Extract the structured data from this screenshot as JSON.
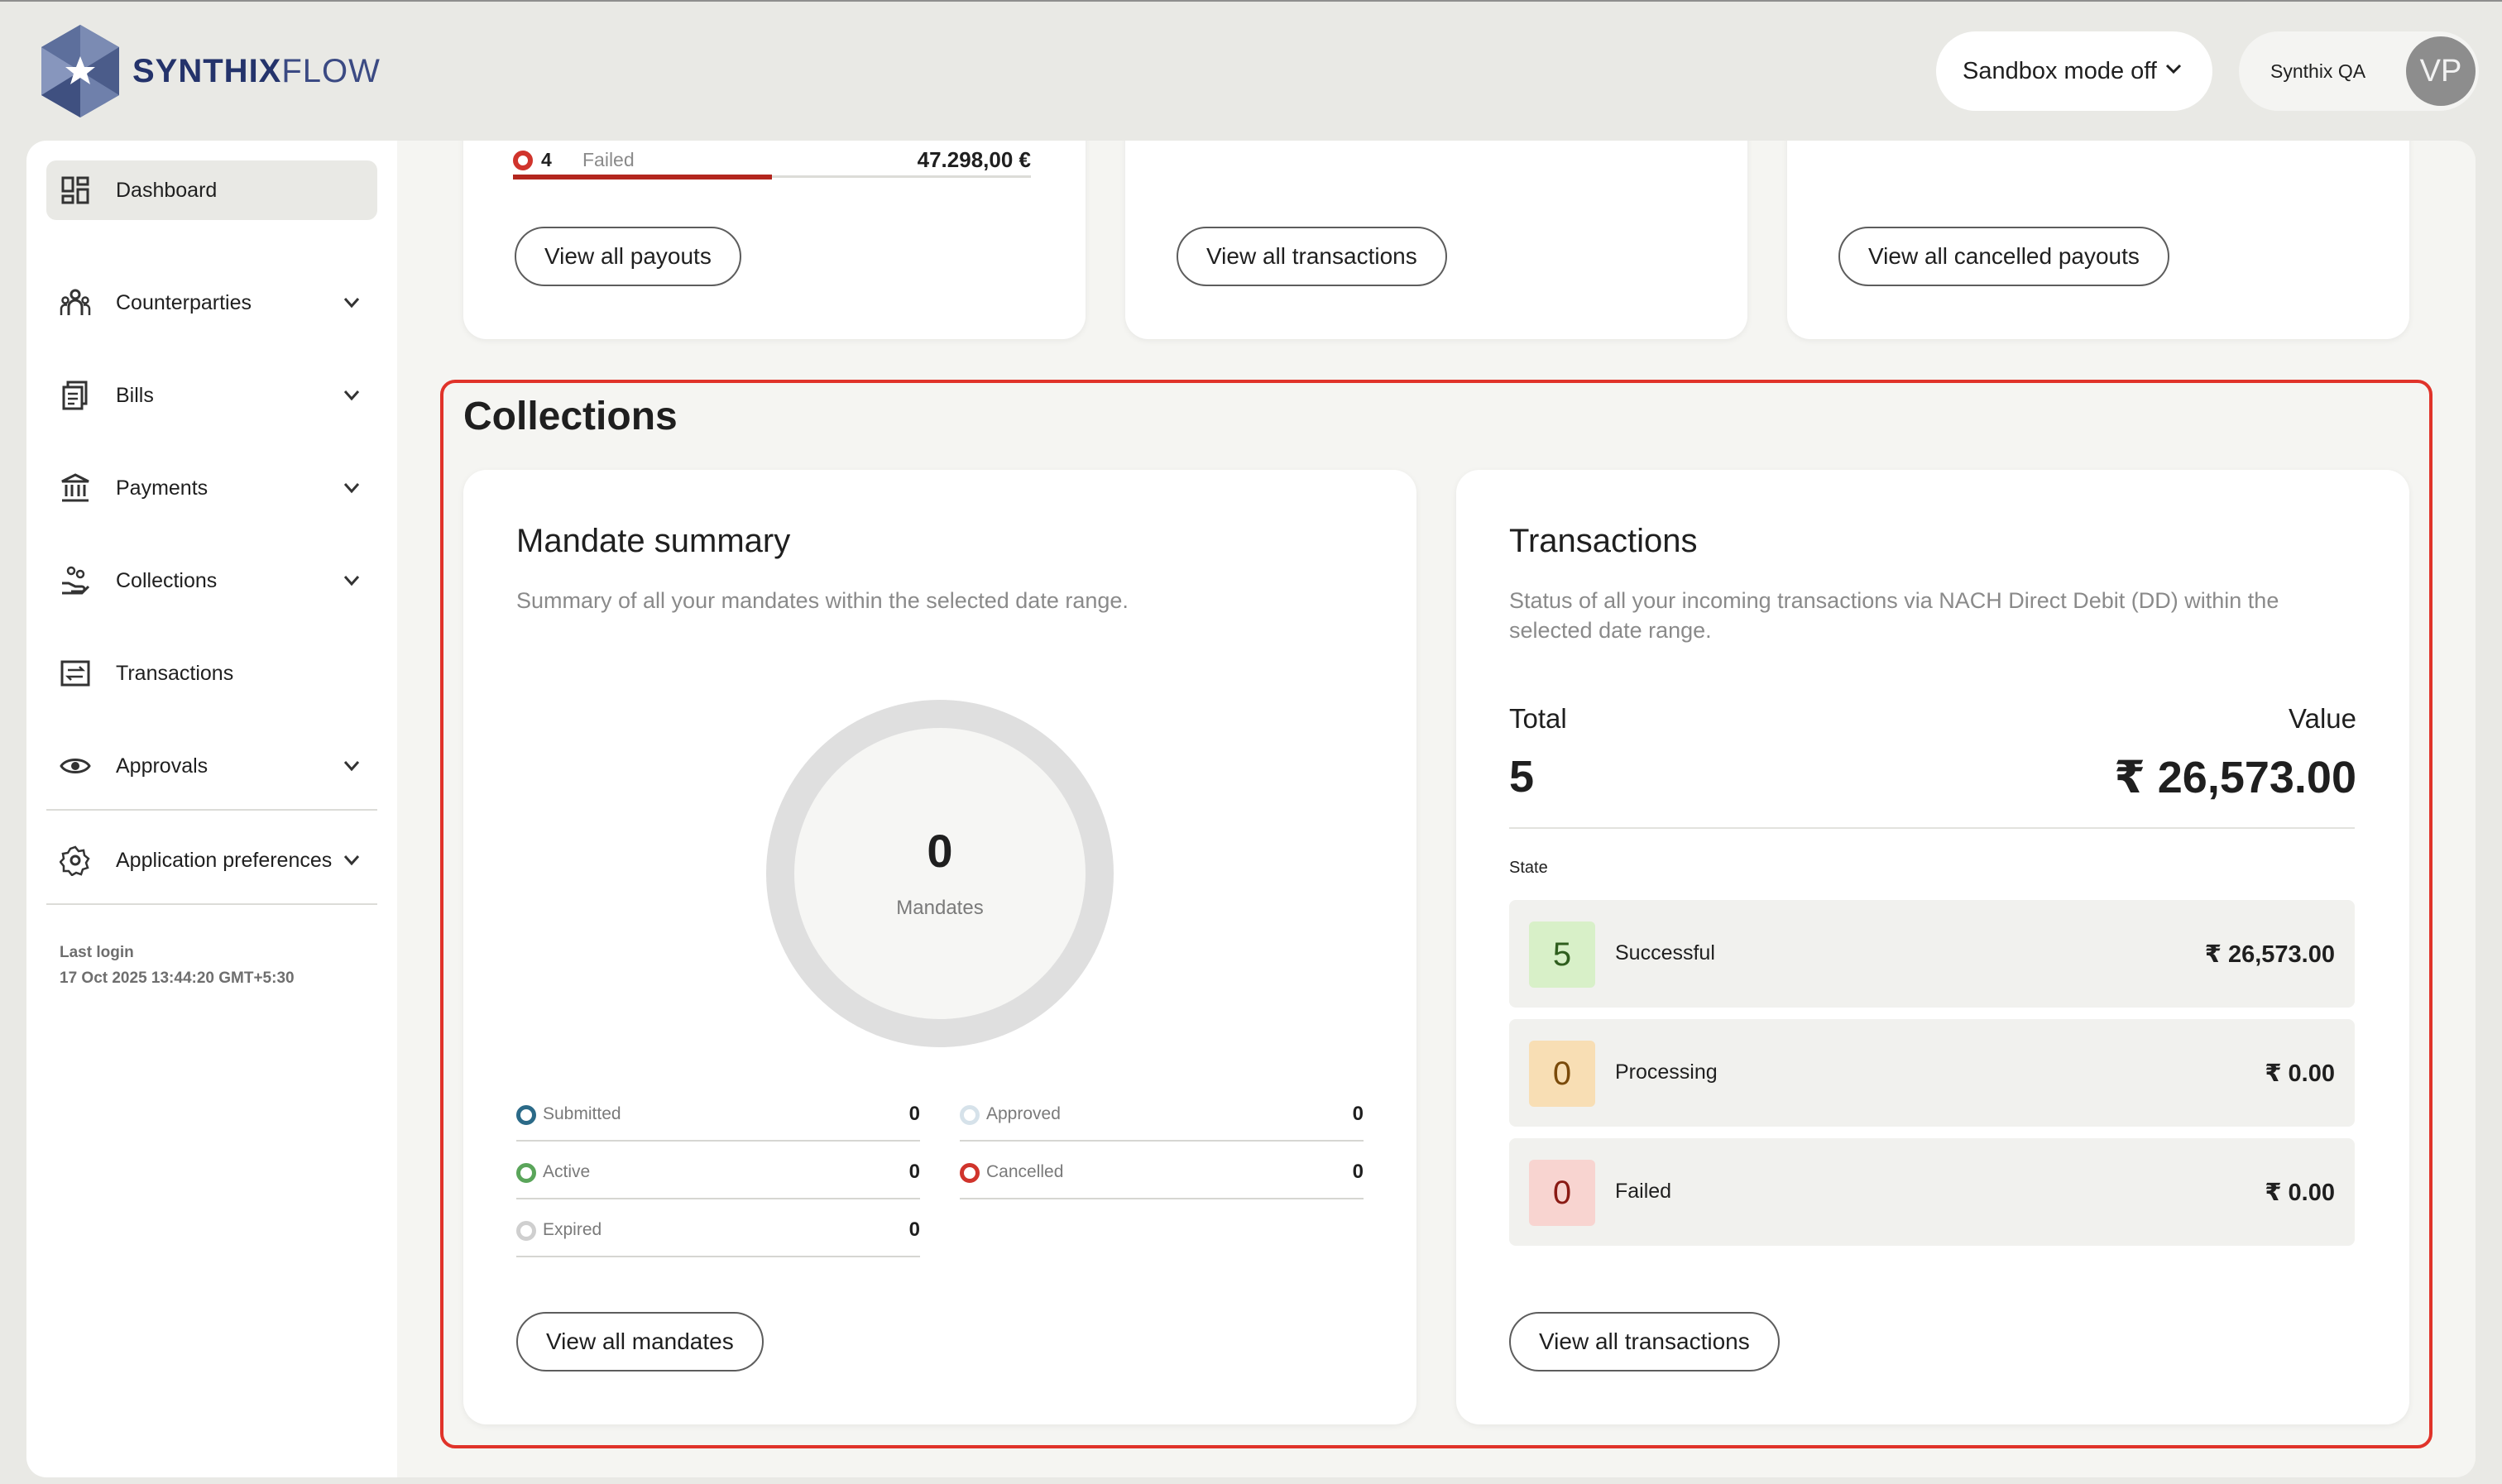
{
  "header": {
    "logo_text_bold": "SYNTHIX",
    "logo_text_light": "FLOW",
    "sandbox_label": "Sandbox mode off",
    "org_name": "Synthix QA",
    "avatar_initials": "VP"
  },
  "sidebar": {
    "items": [
      {
        "label": "Dashboard",
        "icon": "dashboard-icon"
      },
      {
        "label": "Counterparties",
        "icon": "people-icon"
      },
      {
        "label": "Bills",
        "icon": "bills-icon"
      },
      {
        "label": "Payments",
        "icon": "bank-icon"
      },
      {
        "label": "Collections",
        "icon": "hand-coins-icon"
      },
      {
        "label": "Transactions",
        "icon": "transfer-icon"
      },
      {
        "label": "Approvals",
        "icon": "eye-icon"
      },
      {
        "label": "Application preferences",
        "icon": "gear-icon"
      }
    ],
    "last_login_label": "Last login",
    "last_login_value": "17 Oct 2025 13:44:20 GMT+5:30"
  },
  "top_cards": {
    "failed_count": "4",
    "failed_label": "Failed",
    "failed_amount": "47.298,00 €",
    "failed_progress": 0.5,
    "btn_payouts": "View all payouts",
    "btn_transactions": "View all transactions",
    "btn_cancelled": "View all cancelled payouts"
  },
  "collections": {
    "title": "Collections",
    "mandate": {
      "title": "Mandate summary",
      "subtitle": "Summary of all your mandates within the selected date range.",
      "total": "0",
      "total_label": "Mandates",
      "legend": [
        {
          "label": "Submitted",
          "value": "0",
          "color": "#2b6a88"
        },
        {
          "label": "Approved",
          "value": "0",
          "color": "#d6e2ea"
        },
        {
          "label": "Active",
          "value": "0",
          "color": "#5aa55a"
        },
        {
          "label": "Cancelled",
          "value": "0",
          "color": "#d0342c"
        },
        {
          "label": "Expired",
          "value": "0",
          "color": "#cfcfcf"
        }
      ],
      "button": "View all mandates"
    },
    "transactions": {
      "title": "Transactions",
      "subtitle_line1": "Status of all your incoming transactions via NACH Direct Debit (DD) within the",
      "subtitle_line2": "selected date range.",
      "total_label": "Total",
      "total_value": "5",
      "value_label": "Value",
      "value_amount": "₹ 26,573.00",
      "state_label": "State",
      "states": [
        {
          "count": "5",
          "name": "Successful",
          "amount": "₹ 26,573.00",
          "badge_bg": "#d8f0c8",
          "badge_fg": "#2f5e1e"
        },
        {
          "count": "0",
          "name": "Processing",
          "amount": "₹ 0.00",
          "badge_bg": "#f8deb4",
          "badge_fg": "#7a4a0a"
        },
        {
          "count": "0",
          "name": "Failed",
          "amount": "₹ 0.00",
          "badge_bg": "#f8d4d0",
          "badge_fg": "#8a1a14"
        }
      ],
      "button": "View all transactions"
    }
  },
  "colors": {
    "accent_red": "#e0332a",
    "brand_navy": "#24336b"
  }
}
